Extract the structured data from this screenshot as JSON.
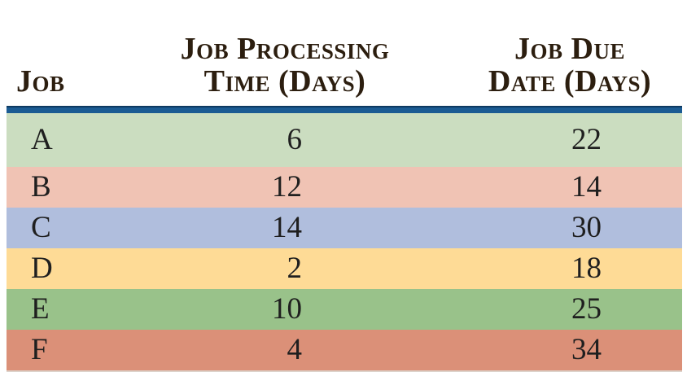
{
  "figure": {
    "header": {
      "job_label": "Job",
      "processing_line1": "Job Processing",
      "processing_line2": "Time (Days)",
      "due_line1": "Job Due",
      "due_line2": "Date (Days)"
    },
    "rows": [
      {
        "job": "A",
        "processing_time": "6",
        "due_date": "22",
        "row_color": "#cbddc0"
      },
      {
        "job": "B",
        "processing_time": "12",
        "due_date": "14",
        "row_color": "#f0c3b4"
      },
      {
        "job": "C",
        "processing_time": "14",
        "due_date": "30",
        "row_color": "#b0bedd"
      },
      {
        "job": "D",
        "processing_time": "2",
        "due_date": "18",
        "row_color": "#fedb96"
      },
      {
        "job": "E",
        "processing_time": "10",
        "due_date": "25",
        "row_color": "#99c28a"
      },
      {
        "job": "F",
        "processing_time": "4",
        "due_date": "34",
        "row_color": "#db9078"
      }
    ],
    "colors": {
      "header_rule": "#1b5b93",
      "header_rule_top_edge": "#0e3a61",
      "header_text": "#2c1e0f",
      "body_text": "#1f1f1f",
      "bottom_edge": "#ddd2ca",
      "background": "#ffffff"
    }
  },
  "chart_data": {
    "type": "table",
    "columns": [
      "Job",
      "Job Processing Time (Days)",
      "Job Due Date (Days)"
    ],
    "rows": [
      [
        "A",
        6,
        22
      ],
      [
        "B",
        12,
        14
      ],
      [
        "C",
        14,
        30
      ],
      [
        "D",
        2,
        18
      ],
      [
        "E",
        10,
        25
      ],
      [
        "F",
        4,
        34
      ]
    ],
    "title": "",
    "legend": "none",
    "grid": "off"
  }
}
